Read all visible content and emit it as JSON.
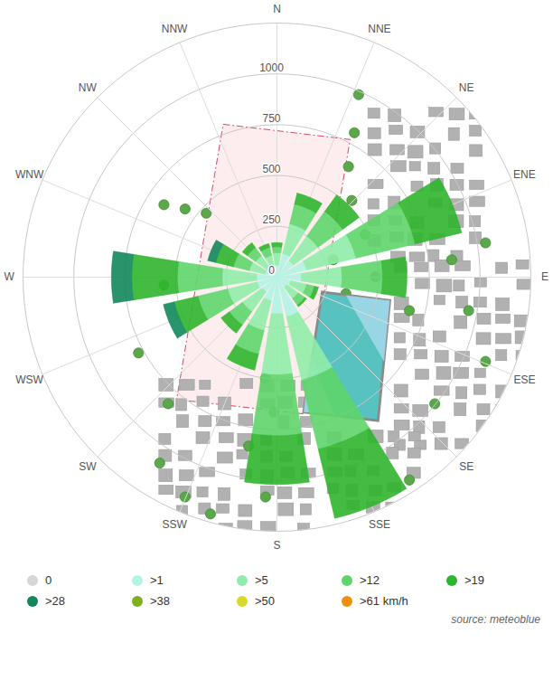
{
  "chart_data": {
    "type": "wind_rose",
    "categories": [
      "N",
      "NNE",
      "NE",
      "ENE",
      "E",
      "ESE",
      "SE",
      "SSE",
      "S",
      "SSW",
      "SW",
      "WSW",
      "W",
      "WNW",
      "NW",
      "NNW"
    ],
    "series": [
      {
        "name": "0",
        "color": "#d6d6d6",
        "values": [
          0,
          0,
          0,
          0,
          0,
          0,
          0,
          0,
          0,
          0,
          0,
          0,
          0,
          0,
          0,
          0
        ]
      },
      {
        "name": ">1",
        "color": "#b3f3e3",
        "values": [
          60,
          120,
          100,
          150,
          120,
          70,
          60,
          200,
          180,
          120,
          90,
          100,
          100,
          60,
          60,
          50
        ]
      },
      {
        "name": ">5",
        "color": "#90eca9",
        "values": [
          60,
          150,
          150,
          250,
          200,
          80,
          70,
          320,
          300,
          150,
          120,
          150,
          170,
          80,
          70,
          60
        ]
      },
      {
        "name": ">12",
        "color": "#5fd56b",
        "values": [
          30,
          100,
          150,
          300,
          200,
          40,
          40,
          350,
          300,
          120,
          80,
          150,
          220,
          80,
          50,
          40
        ]
      },
      {
        "name": ">19",
        "color": "#2fb52c",
        "values": [
          20,
          55,
          100,
          235,
          120,
          20,
          10,
          350,
          240,
          80,
          50,
          120,
          225,
          90,
          30,
          20
        ]
      },
      {
        "name": ">28",
        "color": "#12875c",
        "values": [
          0,
          0,
          0,
          0,
          0,
          0,
          0,
          0,
          0,
          0,
          0,
          55,
          100,
          40,
          0,
          0
        ]
      },
      {
        "name": ">38",
        "color": "#7fae1f",
        "values": [
          0,
          0,
          0,
          0,
          0,
          0,
          0,
          0,
          0,
          0,
          0,
          0,
          0,
          0,
          0,
          0
        ]
      },
      {
        "name": ">50",
        "color": "#dcd82a",
        "values": [
          0,
          0,
          0,
          0,
          0,
          0,
          0,
          0,
          0,
          0,
          0,
          0,
          0,
          0,
          0,
          0
        ]
      },
      {
        "name": ">61 km/h",
        "color": "#f0900a",
        "values": [
          0,
          0,
          0,
          0,
          0,
          0,
          0,
          0,
          0,
          0,
          0,
          0,
          0,
          0,
          0,
          0
        ]
      }
    ],
    "ylim": [
      0,
      1250
    ],
    "yticks": [
      0,
      250,
      500,
      750,
      1000
    ],
    "grid": true,
    "stacked": true,
    "legend": "bottom",
    "caption": "source: meteoblue"
  }
}
